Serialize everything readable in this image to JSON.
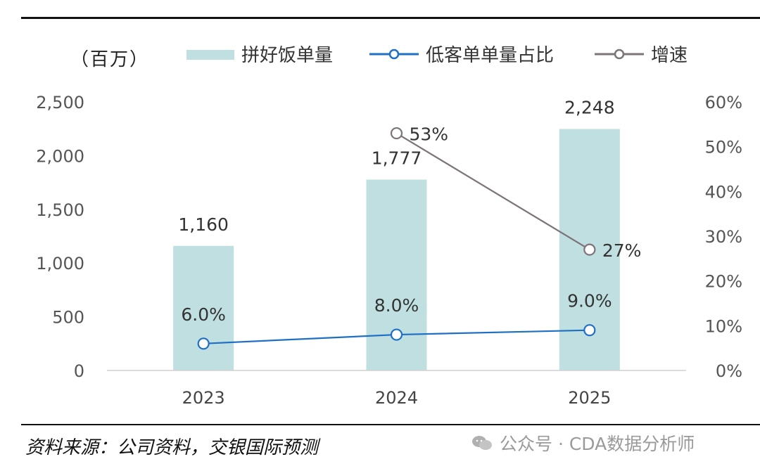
{
  "header": {
    "unit_label": "（百万）"
  },
  "legend": {
    "bar_label": "拼好饭单量",
    "share_label": "低客单单量占比",
    "growth_label": "增速"
  },
  "footer": {
    "source": "资料来源：公司资料，交银国际预测",
    "watermark": "公众号 · CDA数据分析师"
  },
  "colors": {
    "bar": "#bfdfe0",
    "share_line": "#1f6fc5",
    "growth_line": "#7d7479"
  },
  "chart_data": {
    "type": "bar",
    "categories": [
      "2023",
      "2024",
      "2025"
    ],
    "series": [
      {
        "name": "拼好饭单量",
        "type": "bar",
        "axis": "left",
        "values": [
          1160,
          1777,
          2248
        ],
        "labels": [
          "1,160",
          "1,777",
          "2,248"
        ]
      },
      {
        "name": "低客单单量占比",
        "type": "line",
        "axis": "right",
        "values": [
          6.0,
          8.0,
          9.0
        ],
        "labels": [
          "6.0%",
          "8.0%",
          "9.0%"
        ]
      },
      {
        "name": "增速",
        "type": "line",
        "axis": "right",
        "values": [
          null,
          53,
          27
        ],
        "labels": [
          "",
          "53%",
          "27%"
        ]
      }
    ],
    "left_axis": {
      "ylim": [
        0,
        2500
      ],
      "ticks": [
        "0",
        "500",
        "1,000",
        "1,500",
        "2,000",
        "2,500"
      ],
      "tick_values": [
        0,
        500,
        1000,
        1500,
        2000,
        2500
      ]
    },
    "right_axis": {
      "ylim": [
        0,
        60
      ],
      "ticks": [
        "0%",
        "10%",
        "20%",
        "30%",
        "40%",
        "50%",
        "60%"
      ],
      "tick_values": [
        0,
        10,
        20,
        30,
        40,
        50,
        60
      ]
    },
    "grid": false,
    "legend_position": "top"
  }
}
